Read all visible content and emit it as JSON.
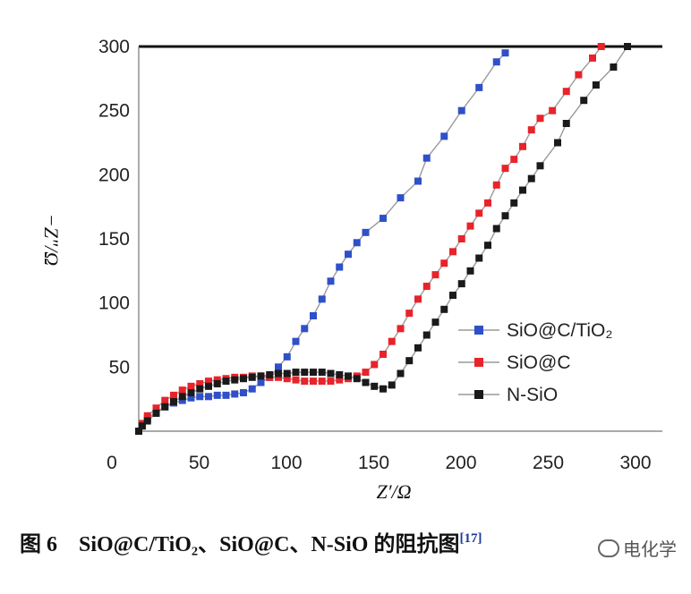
{
  "chart_data": {
    "type": "scatter",
    "title": "",
    "xlabel": "Z′/Ω",
    "ylabel": "−Z″/Ω",
    "xlim": [
      0,
      300
    ],
    "ylim": [
      0,
      300
    ],
    "xticks": [
      "0",
      "50",
      "100",
      "150",
      "200",
      "250",
      "300"
    ],
    "yticks": [
      "50",
      "100",
      "150",
      "200",
      "250",
      "300"
    ],
    "grid": false,
    "legend_position": "right",
    "series": [
      {
        "name": "SiO@C/TiO₂",
        "color": "#2f50c8",
        "points": [
          [
            0,
            0
          ],
          [
            2,
            5
          ],
          [
            5,
            10
          ],
          [
            10,
            15
          ],
          [
            15,
            19
          ],
          [
            20,
            22
          ],
          [
            25,
            24
          ],
          [
            30,
            26
          ],
          [
            35,
            27
          ],
          [
            40,
            27
          ],
          [
            45,
            28
          ],
          [
            50,
            28
          ],
          [
            55,
            29
          ],
          [
            60,
            30
          ],
          [
            65,
            33
          ],
          [
            70,
            38
          ],
          [
            75,
            42
          ],
          [
            80,
            50
          ],
          [
            85,
            58
          ],
          [
            90,
            70
          ],
          [
            95,
            80
          ],
          [
            100,
            90
          ],
          [
            105,
            103
          ],
          [
            110,
            117
          ],
          [
            115,
            128
          ],
          [
            120,
            138
          ],
          [
            125,
            147
          ],
          [
            130,
            155
          ],
          [
            140,
            166
          ],
          [
            150,
            182
          ],
          [
            160,
            195
          ],
          [
            165,
            213
          ],
          [
            175,
            230
          ],
          [
            185,
            250
          ],
          [
            195,
            268
          ],
          [
            205,
            288
          ],
          [
            210,
            295
          ]
        ]
      },
      {
        "name": "SiO@C",
        "color": "#e8232a",
        "points": [
          [
            0,
            0
          ],
          [
            2,
            6
          ],
          [
            5,
            12
          ],
          [
            10,
            18
          ],
          [
            15,
            24
          ],
          [
            20,
            28
          ],
          [
            25,
            32
          ],
          [
            30,
            35
          ],
          [
            35,
            37
          ],
          [
            40,
            39
          ],
          [
            45,
            40
          ],
          [
            50,
            41
          ],
          [
            55,
            42
          ],
          [
            60,
            42
          ],
          [
            65,
            43
          ],
          [
            70,
            43
          ],
          [
            75,
            42
          ],
          [
            80,
            42
          ],
          [
            85,
            41
          ],
          [
            90,
            40
          ],
          [
            95,
            39
          ],
          [
            100,
            39
          ],
          [
            105,
            39
          ],
          [
            110,
            39
          ],
          [
            115,
            40
          ],
          [
            120,
            41
          ],
          [
            125,
            43
          ],
          [
            130,
            46
          ],
          [
            135,
            52
          ],
          [
            140,
            60
          ],
          [
            145,
            70
          ],
          [
            150,
            80
          ],
          [
            155,
            92
          ],
          [
            160,
            103
          ],
          [
            165,
            113
          ],
          [
            170,
            122
          ],
          [
            175,
            131
          ],
          [
            180,
            140
          ],
          [
            185,
            150
          ],
          [
            190,
            160
          ],
          [
            195,
            170
          ],
          [
            200,
            178
          ],
          [
            205,
            192
          ],
          [
            210,
            205
          ],
          [
            215,
            212
          ],
          [
            220,
            222
          ],
          [
            225,
            235
          ],
          [
            230,
            244
          ],
          [
            237,
            250
          ],
          [
            245,
            265
          ],
          [
            252,
            278
          ],
          [
            260,
            291
          ],
          [
            265,
            300
          ]
        ]
      },
      {
        "name": "N-SiO",
        "color": "#1a1a1a",
        "points": [
          [
            0,
            0
          ],
          [
            2,
            4
          ],
          [
            5,
            8
          ],
          [
            10,
            14
          ],
          [
            15,
            19
          ],
          [
            20,
            23
          ],
          [
            25,
            27
          ],
          [
            30,
            30
          ],
          [
            35,
            33
          ],
          [
            40,
            35
          ],
          [
            45,
            37
          ],
          [
            50,
            39
          ],
          [
            55,
            40
          ],
          [
            60,
            41
          ],
          [
            65,
            42
          ],
          [
            70,
            43
          ],
          [
            75,
            44
          ],
          [
            80,
            45
          ],
          [
            85,
            45
          ],
          [
            90,
            46
          ],
          [
            95,
            46
          ],
          [
            100,
            46
          ],
          [
            105,
            46
          ],
          [
            110,
            45
          ],
          [
            115,
            44
          ],
          [
            120,
            43
          ],
          [
            125,
            41
          ],
          [
            130,
            38
          ],
          [
            135,
            35
          ],
          [
            140,
            33
          ],
          [
            145,
            36
          ],
          [
            150,
            45
          ],
          [
            155,
            55
          ],
          [
            160,
            65
          ],
          [
            165,
            75
          ],
          [
            170,
            85
          ],
          [
            175,
            95
          ],
          [
            180,
            106
          ],
          [
            185,
            115
          ],
          [
            190,
            125
          ],
          [
            195,
            135
          ],
          [
            200,
            145
          ],
          [
            205,
            158
          ],
          [
            210,
            168
          ],
          [
            215,
            178
          ],
          [
            220,
            188
          ],
          [
            225,
            197
          ],
          [
            230,
            207
          ],
          [
            240,
            225
          ],
          [
            245,
            240
          ],
          [
            255,
            258
          ],
          [
            262,
            270
          ],
          [
            272,
            284
          ],
          [
            280,
            300
          ]
        ]
      }
    ]
  },
  "caption": {
    "label": "图 6",
    "text": "SiO@C/TiO₂、SiO@C、N-SiO 的阻抗图",
    "ref": "[17]"
  },
  "watermark": {
    "text": "电化学"
  }
}
